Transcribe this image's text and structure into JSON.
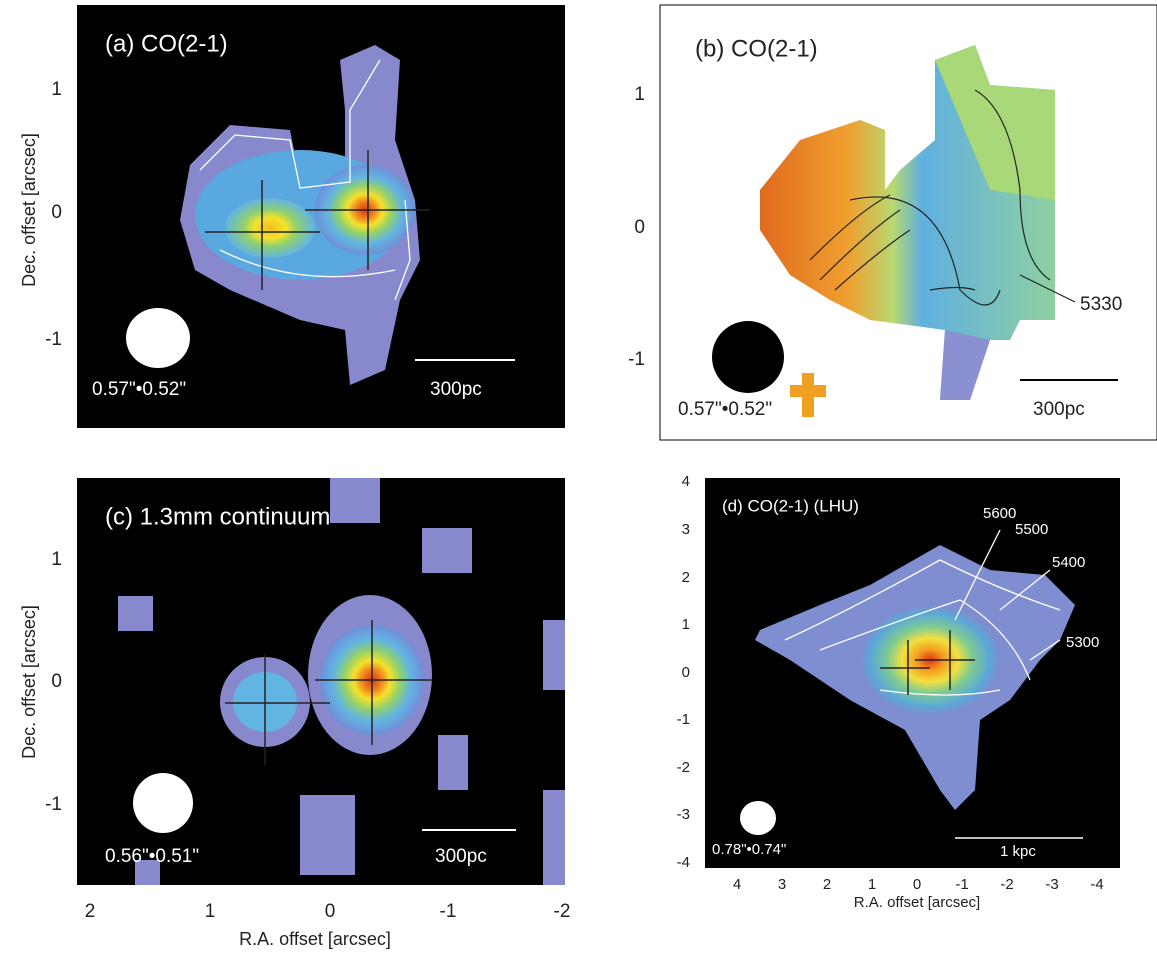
{
  "panels": [
    {
      "label": "(a) CO(2-1)",
      "beam": "0.57\"•0.52\"",
      "scale_bar": "300pc",
      "y_ticks": [
        "1",
        "0",
        "-1"
      ],
      "y_axis_label": "Dec. offset [arcsec]"
    },
    {
      "label": "(b) CO(2-1)",
      "beam": "0.57\"•0.52\"",
      "scale_bar": "300pc",
      "y_ticks": [
        "1",
        "0",
        "-1"
      ],
      "contour_labels": [
        "5330"
      ]
    },
    {
      "label": "(c) 1.3mm continuum",
      "beam": "0.56\"•0.51\"",
      "scale_bar": "300pc",
      "y_ticks": [
        "1",
        "0",
        "-1"
      ],
      "y_axis_label": "Dec. offset [arcsec]",
      "x_ticks": [
        "2",
        "1",
        "0",
        "-1",
        "-2"
      ],
      "x_axis_label": "R.A. offset [arcsec]"
    },
    {
      "label": "(d) CO(2-1) (LHU)",
      "beam": "0.78\"•0.74\"",
      "scale_bar": "1 kpc",
      "y_ticks": [
        "4",
        "3",
        "2",
        "1",
        "0",
        "-1",
        "-2",
        "-3",
        "-4"
      ],
      "x_ticks": [
        "4",
        "3",
        "2",
        "1",
        "0",
        "-1",
        "-2",
        "-3",
        "-4"
      ],
      "x_axis_label": "R.A. offset [arcsec]",
      "contour_labels": [
        "5600",
        "5500",
        "5400",
        "5300"
      ]
    }
  ]
}
